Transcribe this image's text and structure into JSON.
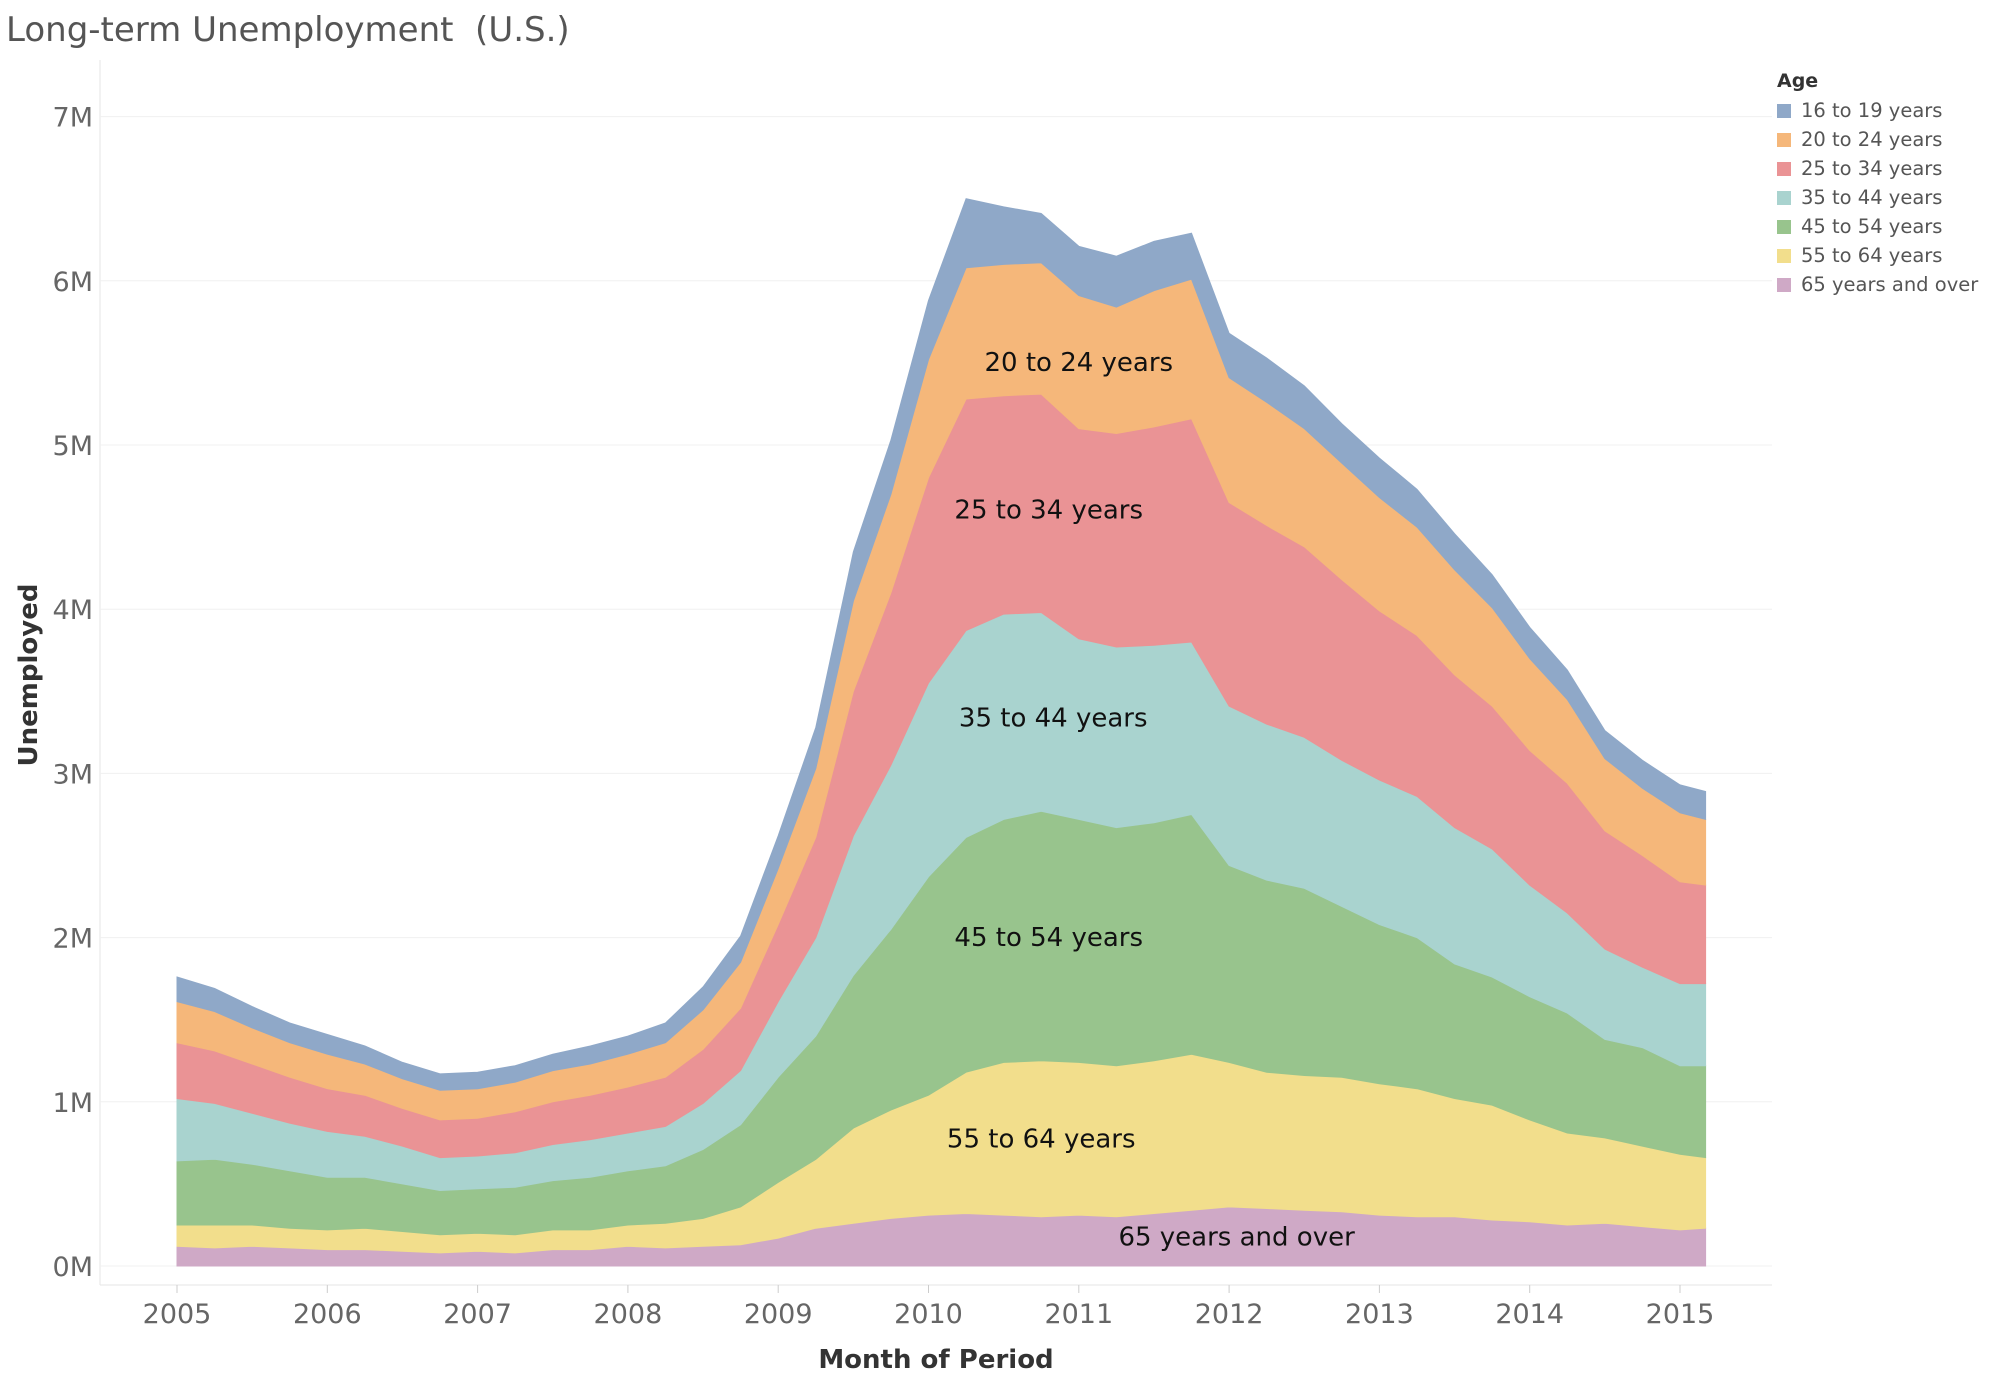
{
  "title": "Long-term Unemployment  (U.S.)",
  "legend": {
    "title": "Age",
    "items": [
      {
        "label": "16 to 19 years",
        "color": "#8fa8c8"
      },
      {
        "label": "20 to 24 years",
        "color": "#f5b77a"
      },
      {
        "label": "25 to 34 years",
        "color": "#ea9395"
      },
      {
        "label": "35 to 44 years",
        "color": "#a9d3cf"
      },
      {
        "label": "45 to 54 years",
        "color": "#98c48d"
      },
      {
        "label": "55 to 64 years",
        "color": "#f2de8c"
      },
      {
        "label": "65 years and over",
        "color": "#cfa9c6"
      }
    ]
  },
  "chart_data": {
    "type": "area",
    "stacked": true,
    "xlabel": "Month of Period",
    "ylabel": "Unemployed",
    "xlim": [
      2005,
      2015.17
    ],
    "ylim": [
      0,
      7
    ],
    "x_ticks": [
      "2005",
      "2006",
      "2007",
      "2008",
      "2009",
      "2010",
      "2011",
      "2012",
      "2013",
      "2014",
      "2015"
    ],
    "y_ticks": [
      "0M",
      "1M",
      "2M",
      "3M",
      "4M",
      "5M",
      "6M",
      "7M"
    ],
    "units": "millions",
    "gridlines": true,
    "legend_position": "top-right",
    "x": [
      2005.0,
      2005.25,
      2005.5,
      2005.75,
      2006.0,
      2006.25,
      2006.5,
      2006.75,
      2007.0,
      2007.25,
      2007.5,
      2007.75,
      2008.0,
      2008.25,
      2008.5,
      2008.75,
      2009.0,
      2009.25,
      2009.5,
      2009.75,
      2010.0,
      2010.25,
      2010.5,
      2010.75,
      2011.0,
      2011.25,
      2011.5,
      2011.75,
      2012.0,
      2012.25,
      2012.5,
      2012.75,
      2013.0,
      2013.25,
      2013.5,
      2013.75,
      2014.0,
      2014.25,
      2014.5,
      2014.75,
      2015.0,
      2015.17
    ],
    "series": [
      {
        "name": "65 years and over",
        "values": [
          0.12,
          0.11,
          0.12,
          0.11,
          0.1,
          0.1,
          0.09,
          0.08,
          0.09,
          0.08,
          0.1,
          0.1,
          0.12,
          0.11,
          0.12,
          0.13,
          0.17,
          0.23,
          0.26,
          0.29,
          0.31,
          0.32,
          0.31,
          0.3,
          0.31,
          0.3,
          0.32,
          0.34,
          0.36,
          0.35,
          0.34,
          0.33,
          0.31,
          0.3,
          0.3,
          0.28,
          0.27,
          0.25,
          0.26,
          0.24,
          0.22,
          0.23
        ]
      },
      {
        "name": "55 to 64 years",
        "values": [
          0.13,
          0.14,
          0.13,
          0.12,
          0.12,
          0.13,
          0.12,
          0.11,
          0.11,
          0.11,
          0.12,
          0.12,
          0.13,
          0.15,
          0.17,
          0.23,
          0.34,
          0.42,
          0.58,
          0.66,
          0.73,
          0.86,
          0.93,
          0.95,
          0.93,
          0.92,
          0.93,
          0.95,
          0.88,
          0.83,
          0.82,
          0.82,
          0.8,
          0.78,
          0.72,
          0.7,
          0.62,
          0.56,
          0.52,
          0.49,
          0.46,
          0.43
        ]
      },
      {
        "name": "45 to 54 years",
        "values": [
          0.39,
          0.4,
          0.37,
          0.35,
          0.32,
          0.31,
          0.29,
          0.27,
          0.27,
          0.29,
          0.3,
          0.32,
          0.33,
          0.35,
          0.42,
          0.5,
          0.64,
          0.75,
          0.93,
          1.1,
          1.33,
          1.43,
          1.48,
          1.52,
          1.48,
          1.45,
          1.45,
          1.46,
          1.2,
          1.17,
          1.14,
          1.04,
          0.97,
          0.92,
          0.82,
          0.78,
          0.75,
          0.73,
          0.6,
          0.6,
          0.54,
          0.56
        ]
      },
      {
        "name": "35 to 44 years",
        "values": [
          0.38,
          0.34,
          0.31,
          0.29,
          0.28,
          0.25,
          0.23,
          0.2,
          0.2,
          0.21,
          0.22,
          0.23,
          0.23,
          0.24,
          0.28,
          0.33,
          0.46,
          0.6,
          0.85,
          1.0,
          1.18,
          1.26,
          1.25,
          1.21,
          1.1,
          1.1,
          1.08,
          1.05,
          0.97,
          0.95,
          0.92,
          0.89,
          0.88,
          0.86,
          0.83,
          0.78,
          0.68,
          0.61,
          0.55,
          0.49,
          0.5,
          0.5
        ]
      },
      {
        "name": "25 to 34 years",
        "values": [
          0.34,
          0.32,
          0.3,
          0.28,
          0.26,
          0.25,
          0.23,
          0.23,
          0.23,
          0.25,
          0.26,
          0.27,
          0.28,
          0.3,
          0.33,
          0.38,
          0.47,
          0.61,
          0.88,
          1.05,
          1.25,
          1.41,
          1.33,
          1.33,
          1.28,
          1.3,
          1.33,
          1.36,
          1.24,
          1.21,
          1.16,
          1.1,
          1.03,
          0.98,
          0.93,
          0.87,
          0.82,
          0.79,
          0.72,
          0.68,
          0.62,
          0.6
        ]
      },
      {
        "name": "20 to 24 years",
        "values": [
          0.25,
          0.24,
          0.22,
          0.21,
          0.21,
          0.19,
          0.18,
          0.18,
          0.18,
          0.18,
          0.19,
          0.19,
          0.2,
          0.21,
          0.24,
          0.28,
          0.34,
          0.42,
          0.55,
          0.6,
          0.72,
          0.8,
          0.8,
          0.8,
          0.81,
          0.77,
          0.83,
          0.85,
          0.76,
          0.75,
          0.72,
          0.71,
          0.69,
          0.66,
          0.64,
          0.6,
          0.56,
          0.51,
          0.44,
          0.41,
          0.42,
          0.4
        ]
      },
      {
        "name": "16 to 19 years",
        "values": [
          0.15,
          0.14,
          0.13,
          0.12,
          0.12,
          0.11,
          0.1,
          0.1,
          0.1,
          0.1,
          0.1,
          0.11,
          0.11,
          0.12,
          0.14,
          0.16,
          0.2,
          0.25,
          0.3,
          0.33,
          0.36,
          0.42,
          0.35,
          0.3,
          0.3,
          0.31,
          0.3,
          0.28,
          0.27,
          0.27,
          0.26,
          0.24,
          0.24,
          0.23,
          0.22,
          0.2,
          0.19,
          0.18,
          0.17,
          0.17,
          0.17,
          0.17
        ]
      }
    ],
    "annotations": [
      {
        "text": "20 to 24 years",
        "series": "20 to 24 years",
        "x": 2011.0
      },
      {
        "text": "25 to 34 years",
        "series": "25 to 34 years",
        "x": 2010.8
      },
      {
        "text": "35 to 44 years",
        "series": "35 to 44 years",
        "x": 2010.83
      },
      {
        "text": "45 to 54 years",
        "series": "45 to 54 years",
        "x": 2010.8
      },
      {
        "text": "55 to 64 years",
        "series": "55 to 64 years",
        "x": 2010.75
      },
      {
        "text": "65 years and over",
        "series": "65 years and over",
        "x": 2012.05
      }
    ]
  }
}
